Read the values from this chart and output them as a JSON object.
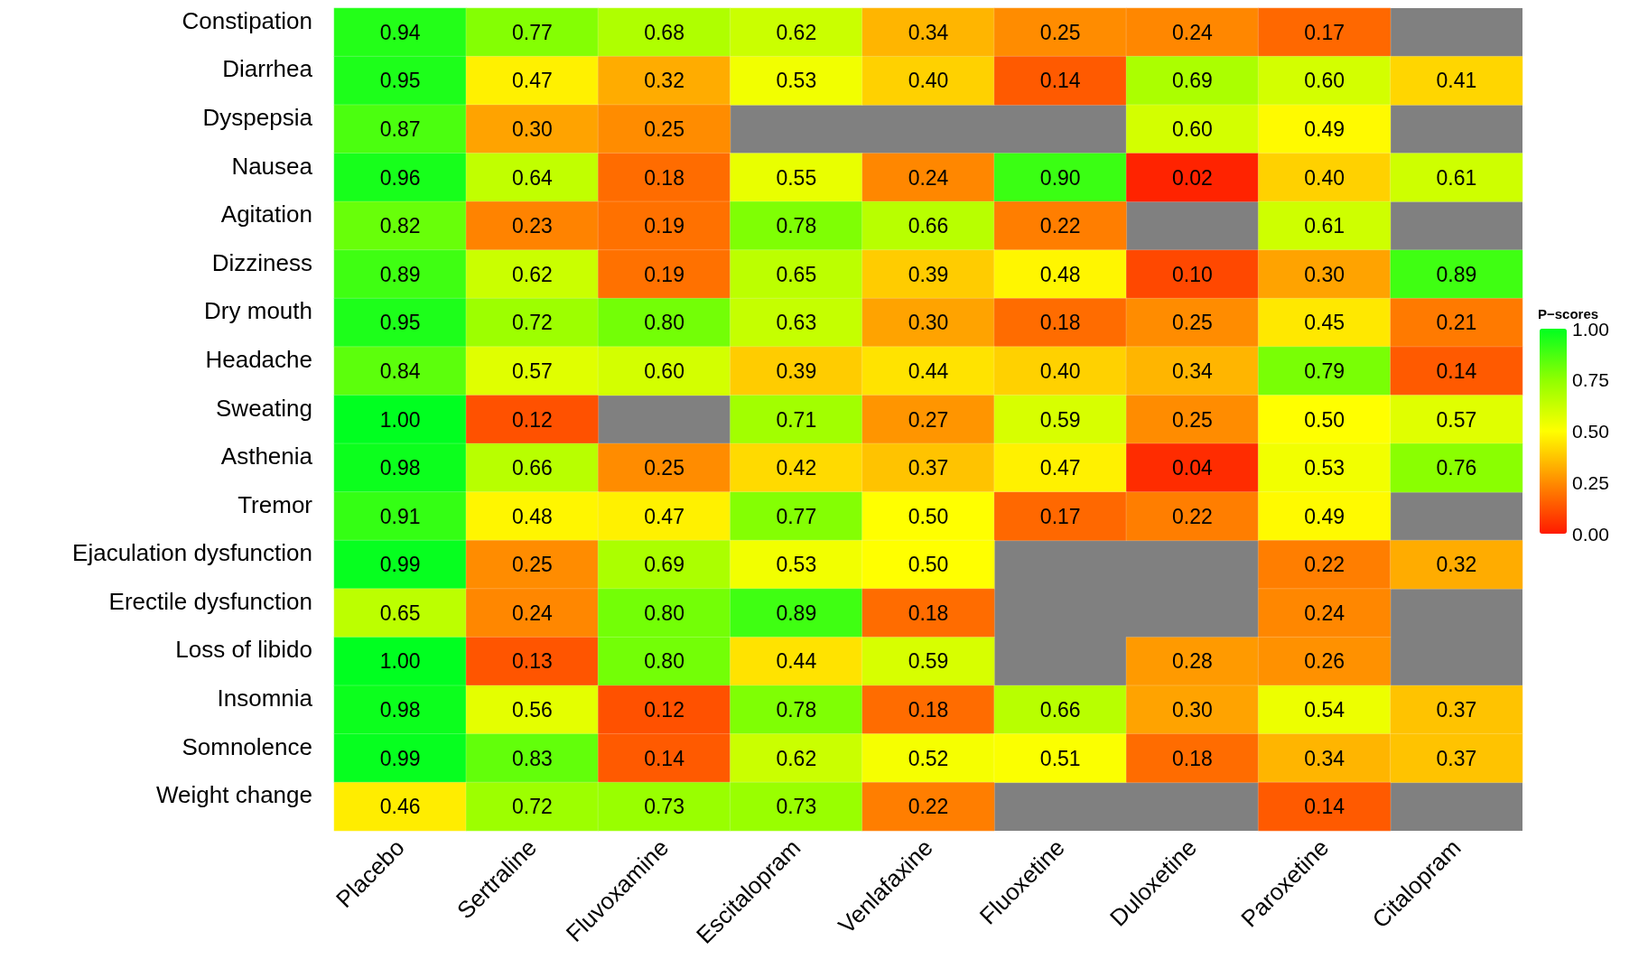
{
  "chart_data": {
    "type": "heatmap",
    "categories": [
      "Placebo",
      "Sertraline",
      "Fluvoxamine",
      "Escitalopram",
      "Venlafaxine",
      "Fluoxetine",
      "Duloxetine",
      "Paroxetine",
      "Citalopram"
    ],
    "y_categories": [
      "Constipation",
      "Diarrhea",
      "Dyspepsia",
      "Nausea",
      "Agitation",
      "Dizziness",
      "Dry mouth",
      "Headache",
      "Sweating",
      "Asthenia",
      "Tremor",
      "Ejaculation dysfunction",
      "Erectile dysfunction",
      "Loss of libido",
      "Insomnia",
      "Somnolence",
      "Weight change"
    ],
    "cells": [
      [
        0.94,
        0.77,
        0.68,
        0.62,
        0.34,
        0.25,
        0.24,
        0.17,
        null
      ],
      [
        0.95,
        0.47,
        0.32,
        0.53,
        0.4,
        0.14,
        0.69,
        0.6,
        0.41
      ],
      [
        0.87,
        0.3,
        0.25,
        null,
        null,
        null,
        0.6,
        0.49,
        null
      ],
      [
        0.96,
        0.64,
        0.18,
        0.55,
        0.24,
        0.9,
        0.02,
        0.4,
        0.61
      ],
      [
        0.82,
        0.23,
        0.19,
        0.78,
        0.66,
        0.22,
        null,
        0.61,
        null
      ],
      [
        0.89,
        0.62,
        0.19,
        0.65,
        0.39,
        0.48,
        0.1,
        0.3,
        0.89
      ],
      [
        0.95,
        0.72,
        0.8,
        0.63,
        0.3,
        0.18,
        0.25,
        0.45,
        0.21
      ],
      [
        0.84,
        0.57,
        0.6,
        0.39,
        0.44,
        0.4,
        0.34,
        0.79,
        0.14
      ],
      [
        1.0,
        0.12,
        null,
        0.71,
        0.27,
        0.59,
        0.25,
        0.5,
        0.57
      ],
      [
        0.98,
        0.66,
        0.25,
        0.42,
        0.37,
        0.47,
        0.04,
        0.53,
        0.76
      ],
      [
        0.91,
        0.48,
        0.47,
        0.77,
        0.5,
        0.17,
        0.22,
        0.49,
        null
      ],
      [
        0.99,
        0.25,
        0.69,
        0.53,
        0.5,
        null,
        null,
        0.22,
        0.32
      ],
      [
        0.65,
        0.24,
        0.8,
        0.89,
        0.18,
        null,
        null,
        0.24,
        null
      ],
      [
        1.0,
        0.13,
        0.8,
        0.44,
        0.59,
        null,
        0.28,
        0.26,
        null
      ],
      [
        0.98,
        0.56,
        0.12,
        0.78,
        0.18,
        0.66,
        0.3,
        0.54,
        0.37
      ],
      [
        0.99,
        0.83,
        0.14,
        0.62,
        0.52,
        0.51,
        0.18,
        0.34,
        0.37
      ],
      [
        0.46,
        0.72,
        0.73,
        0.73,
        0.22,
        null,
        null,
        0.14,
        null
      ]
    ],
    "cell_labels": [
      [
        "0.94",
        "0.77",
        "0.68",
        "0.62",
        "0.34",
        "0.25",
        "0.24",
        "0.17",
        null
      ],
      [
        "0.95",
        "0.47",
        "0.32",
        "0.53",
        "0.40",
        "0.14",
        "0.69",
        "0.60",
        "0.41"
      ],
      [
        "0.87",
        "0.30",
        "0.25",
        null,
        null,
        null,
        "0.60",
        "0.49",
        null
      ],
      [
        "0.96",
        "0.64",
        "0.18",
        "0.55",
        "0.24",
        "0.90",
        "0.02",
        "0.40",
        "0.61"
      ],
      [
        "0.82",
        "0.23",
        "0.19",
        "0.78",
        "0.66",
        "0.22",
        null,
        "0.61",
        null
      ],
      [
        "0.89",
        "0.62",
        "0.19",
        "0.65",
        "0.39",
        "0.48",
        "0.10",
        "0.30",
        "0.89"
      ],
      [
        "0.95",
        "0.72",
        "0.80",
        "0.63",
        "0.30",
        "0.18",
        "0.25",
        "0.45",
        "0.21"
      ],
      [
        "0.84",
        "0.57",
        "0.60",
        "0.39",
        "0.44",
        "0.40",
        "0.34",
        "0.79",
        "0.14"
      ],
      [
        "1.00",
        "0.12",
        null,
        "0.71",
        "0.27",
        "0.59",
        "0.25",
        "0.50",
        "0.57"
      ],
      [
        "0.98",
        "0.66",
        "0.25",
        "0.42",
        "0.37",
        "0.47",
        "0.04",
        "0.53",
        "0.76"
      ],
      [
        "0.91",
        "0.48",
        "0.47",
        "0.77",
        "0.50",
        "0.17",
        "0.22",
        "0.49",
        null
      ],
      [
        "0.99",
        "0.25",
        "0.69",
        "0.53",
        "0.50",
        null,
        null,
        "0.22",
        "0.32"
      ],
      [
        "0.65",
        "0.24",
        "0.80",
        "0.89",
        "0.18",
        null,
        null,
        "0.24",
        null
      ],
      [
        "1.00",
        "0.13",
        "0.80",
        "0.44",
        "0.59",
        null,
        "0.28",
        "0.26",
        null
      ],
      [
        "0.98",
        "0.56",
        "0.12",
        "0.78",
        "0.18",
        "0.66",
        "0.30",
        "0.54",
        "0.37"
      ],
      [
        "0.99",
        "0.83",
        "0.14",
        "0.62",
        "0.52",
        "0.51",
        "0.18",
        "0.34",
        "0.37"
      ],
      [
        "0.46",
        "0.72",
        "0.73",
        "0.73",
        "0.22",
        null,
        null,
        "0.14",
        null
      ]
    ],
    "clabel": "P−scores",
    "clim": [
      0,
      1
    ],
    "cticks": [
      {
        "value": 0,
        "label": "0.00"
      },
      {
        "value": 0.25,
        "label": "0.25"
      },
      {
        "value": 0.5,
        "label": "0.50"
      },
      {
        "value": 0.75,
        "label": "0.75"
      },
      {
        "value": 1,
        "label": "1.00"
      }
    ]
  }
}
